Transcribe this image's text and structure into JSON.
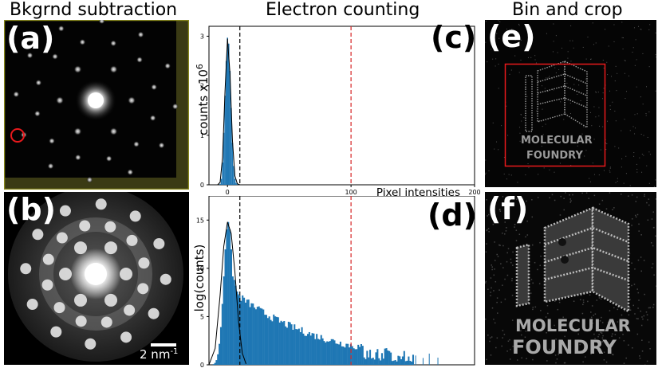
{
  "titles": {
    "left": "Bkgrnd subtraction",
    "center": "Electron counting",
    "right": "Bin and crop"
  },
  "panels": {
    "a": "(a)",
    "b": "(b)",
    "c": "(c)",
    "d": "(d)",
    "e": "(e)",
    "f": "(f)"
  },
  "scale_bar": {
    "text": "2 nm",
    "superscript": "-1"
  },
  "logo": {
    "line1": "MOLECULAR",
    "line2": "FOUNDRY"
  },
  "colors": {
    "bar": "#1f77b4",
    "fit": "#000000",
    "threshold_black": "#000000",
    "threshold_red": "#d62728",
    "roi_red": "#e8191c",
    "roi_yellow": "#8a8a1e"
  },
  "chart_data": [
    {
      "type": "bar",
      "panel": "(c)",
      "xlabel": "Pixel intensities",
      "ylabel": "counts x10",
      "ylabel_superscript": "6",
      "xlim": [
        -15,
        200
      ],
      "ylim": [
        0,
        3.2
      ],
      "xticks": [
        0,
        100,
        200
      ],
      "xtick_labels": [
        "0",
        "100",
        "200"
      ],
      "yticks": [
        0,
        1,
        2,
        3
      ],
      "ytick_labels": [
        "0",
        "1",
        "2",
        "3"
      ],
      "x": [
        -6,
        -5,
        -4,
        -3,
        -2,
        -1,
        0,
        1,
        2,
        3,
        4,
        5,
        6,
        7,
        8,
        9
      ],
      "values": [
        0.02,
        0.12,
        0.45,
        1.05,
        1.8,
        2.5,
        2.97,
        2.85,
        2.3,
        1.55,
        0.85,
        0.38,
        0.12,
        0.04,
        0.015,
        0.005
      ],
      "fit": [
        [
          -8,
          0.0
        ],
        [
          -6,
          0.05
        ],
        [
          -4,
          0.55
        ],
        [
          -2,
          1.9
        ],
        [
          0,
          2.95
        ],
        [
          2,
          2.25
        ],
        [
          4,
          0.9
        ],
        [
          6,
          0.18
        ],
        [
          8,
          0.02
        ],
        [
          10,
          0.0
        ]
      ],
      "thresholds": [
        {
          "x": 10,
          "color": "black",
          "style": "dashed"
        },
        {
          "x": 100,
          "color": "red",
          "style": "dashed"
        }
      ]
    },
    {
      "type": "bar",
      "panel": "(d)",
      "ylabel": "log(counts)",
      "xlim": [
        -15,
        200
      ],
      "ylim": [
        0,
        17.5
      ],
      "yticks": [
        0,
        5,
        10,
        15
      ],
      "ytick_labels": [
        "0",
        "5",
        "10",
        "15"
      ],
      "bin_width": 1.2,
      "decay": {
        "x_start": 8,
        "x_end": 150,
        "y_start": 7.2,
        "y_end": 1.0
      },
      "fit": [
        [
          -15,
          0.0
        ],
        [
          -10,
          1.7
        ],
        [
          -6,
          7.2
        ],
        [
          -3,
          12.3
        ],
        [
          0,
          14.8
        ],
        [
          3,
          13.6
        ],
        [
          6,
          9.6
        ],
        [
          9,
          4.4
        ],
        [
          12,
          1.2
        ],
        [
          15,
          0.1
        ]
      ],
      "thresholds": [
        {
          "x": 10,
          "color": "black",
          "style": "dashed"
        },
        {
          "x": 100,
          "color": "red",
          "style": "dashed"
        }
      ]
    }
  ]
}
